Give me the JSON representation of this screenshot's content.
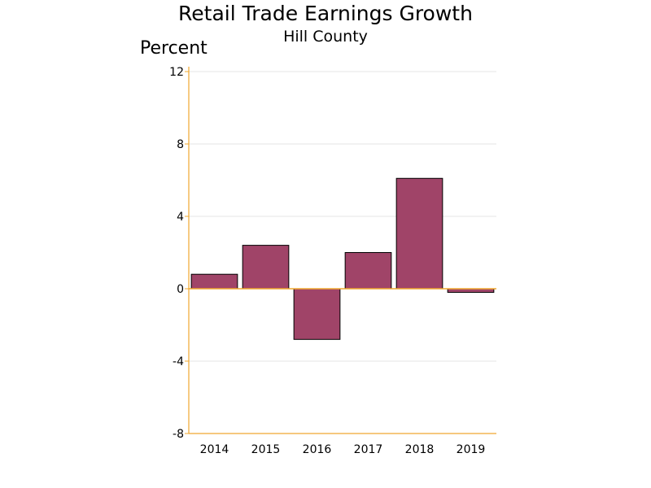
{
  "chart_data": {
    "type": "bar",
    "title": "Retail Trade Earnings Growth",
    "subtitle": "Hill County",
    "ylabel": "Percent",
    "xlabel": "",
    "categories": [
      "2014",
      "2015",
      "2016",
      "2017",
      "2018",
      "2019"
    ],
    "values": [
      0.8,
      2.4,
      -2.8,
      2.0,
      6.1,
      -0.2
    ],
    "ylim": [
      -8,
      12
    ],
    "yticks": [
      12,
      8,
      4,
      0,
      -4,
      -8
    ],
    "grid": true,
    "legend": "none",
    "colors": {
      "bar_fill": "#a04468",
      "bar_stroke": "#000000",
      "axis": "#f0a830",
      "grid": "#e4e4e4"
    }
  }
}
